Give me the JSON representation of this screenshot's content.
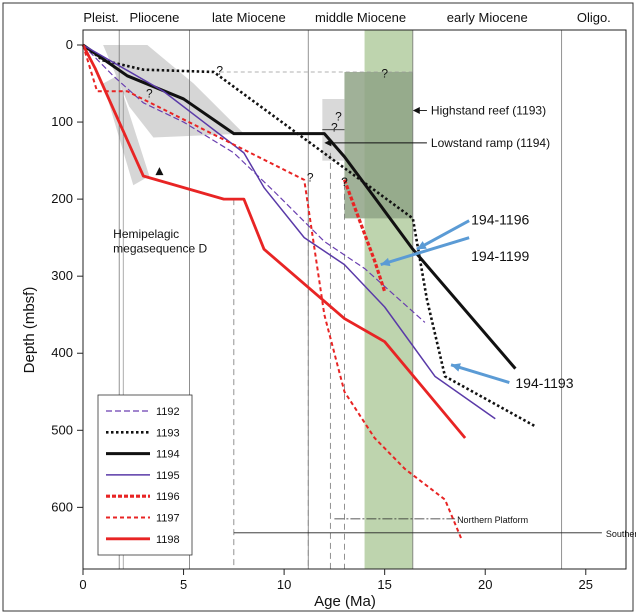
{
  "chart_data": {
    "type": "line",
    "xlabel": "Age (Ma)",
    "ylabel": "Depth (mbsf)",
    "xlim": [
      0,
      27
    ],
    "ylim": [
      0,
      680
    ],
    "y_inverted": true,
    "x_ticks": [
      0,
      5,
      10,
      15,
      20,
      25
    ],
    "y_ticks": [
      0,
      100,
      200,
      300,
      400,
      500,
      600
    ],
    "epochs": [
      {
        "label": "Pleist.",
        "start": 0,
        "end": 1.8
      },
      {
        "label": "Pliocene",
        "start": 1.8,
        "end": 5.3
      },
      {
        "label": "late Miocene",
        "start": 5.3,
        "end": 11.2
      },
      {
        "label": "middle Miocene",
        "start": 11.2,
        "end": 16.4
      },
      {
        "label": "early Miocene",
        "start": 16.4,
        "end": 23.8
      },
      {
        "label": "Oligo.",
        "start": 23.8,
        "end": 27
      }
    ],
    "highlight_band": {
      "x": [
        14.0,
        16.4
      ],
      "color": "#b7cfa5"
    },
    "shaded_regions": [
      {
        "points": [
          [
            1.0,
            0
          ],
          [
            3.2,
            0
          ],
          [
            5.5,
            50
          ],
          [
            8.0,
            115
          ],
          [
            3.5,
            120
          ],
          [
            2.3,
            80
          ],
          [
            1.0,
            0
          ]
        ],
        "color": "#cfcfcf"
      },
      {
        "points": [
          [
            1.0,
            50
          ],
          [
            1.7,
            40
          ],
          [
            3.3,
            170
          ],
          [
            2.5,
            182
          ],
          [
            1.0,
            50
          ]
        ],
        "color": "#cfcfcf"
      },
      {
        "points": [
          [
            13.0,
            35
          ],
          [
            16.4,
            35
          ],
          [
            16.4,
            225
          ],
          [
            13.0,
            225
          ]
        ],
        "color": "#8fa386"
      },
      {
        "points": [
          [
            11.9,
            70
          ],
          [
            13.0,
            70
          ],
          [
            13.0,
            150
          ],
          [
            11.9,
            150
          ]
        ],
        "color": "#d2d2d2"
      }
    ],
    "series": [
      {
        "name": "1192",
        "color": "#6a3fb0",
        "width": 1.2,
        "dash": "6,3",
        "x": [
          0,
          1.5,
          3.0,
          5.0,
          7.5,
          9.5,
          12.0,
          14.0,
          17.0
        ],
        "y": [
          0,
          40,
          75,
          100,
          140,
          190,
          255,
          290,
          360
        ]
      },
      {
        "name": "1193",
        "color": "#111111",
        "width": 2.6,
        "dash": "2.5,2.5",
        "x": [
          0,
          1.0,
          3.0,
          6.5,
          16.4,
          17.1,
          18.0,
          22.5
        ],
        "y": [
          0,
          20,
          32,
          35,
          225,
          330,
          430,
          495
        ]
      },
      {
        "name": "1194",
        "color": "#111111",
        "width": 3.0,
        "dash": "",
        "x": [
          0,
          2.2,
          5.0,
          7.5,
          12.0,
          13.0,
          16.4,
          21.5
        ],
        "y": [
          0,
          40,
          70,
          115,
          115,
          145,
          265,
          420
        ]
      },
      {
        "name": "1195",
        "color": "#5a3aa8",
        "width": 1.5,
        "dash": "",
        "x": [
          0,
          2.0,
          4.0,
          6.0,
          8.0,
          9.0,
          11.0,
          13.0,
          15.0,
          17.5,
          20.5
        ],
        "y": [
          0,
          30,
          60,
          100,
          140,
          185,
          250,
          285,
          340,
          430,
          485
        ]
      },
      {
        "name": "1196",
        "color": "#e82424",
        "width": 3.2,
        "dash": "4,2",
        "x": [
          13.0,
          13.5,
          14.5,
          15.0
        ],
        "y": [
          175,
          210,
          280,
          320
        ]
      },
      {
        "name": "1197",
        "color": "#e82424",
        "width": 2.0,
        "dash": "4,3",
        "x": [
          0,
          0.7,
          1.5,
          2.2,
          11.0,
          12.0,
          13.0,
          14.5,
          16.0,
          18.0,
          18.8
        ],
        "y": [
          0,
          60,
          60,
          60,
          175,
          350,
          450,
          510,
          550,
          590,
          640
        ]
      },
      {
        "name": "1198",
        "color": "#e82424",
        "width": 2.8,
        "dash": "",
        "x": [
          0,
          0.6,
          3.0,
          7.0,
          8.0,
          9.0,
          13.0,
          15.0,
          19.0
        ],
        "y": [
          0,
          30,
          170,
          200,
          200,
          265,
          355,
          385,
          510
        ]
      }
    ],
    "annotations": [
      {
        "text": "Highstand reef (1193)",
        "x": 17.3,
        "y": 85,
        "arrow_to": [
          16.4,
          85
        ]
      },
      {
        "text": "Lowstand ramp (1194)",
        "x": 17.3,
        "y": 127,
        "arrow_to": [
          12.0,
          127
        ]
      },
      {
        "text": "Hemipelagic",
        "x": 1.5,
        "y": 245
      },
      {
        "text": "megasequence D",
        "x": 1.5,
        "y": 264
      },
      {
        "text": "194-1196",
        "x": 19.3,
        "y": 228
      },
      {
        "text": "194-1199",
        "x": 19.3,
        "y": 275
      },
      {
        "text": "194-1193",
        "x": 21.5,
        "y": 440
      },
      {
        "text": "Northern Platform",
        "x": 18.6,
        "y": 615
      },
      {
        "text": "Southern Platfo",
        "x": 26.0,
        "y": 633
      }
    ],
    "question_marks": [
      [
        6.8,
        33
      ],
      [
        3.3,
        63
      ],
      [
        15.0,
        37
      ],
      [
        12.7,
        93
      ],
      [
        12.5,
        107
      ],
      [
        11.3,
        172
      ],
      [
        13.0,
        178
      ]
    ]
  }
}
